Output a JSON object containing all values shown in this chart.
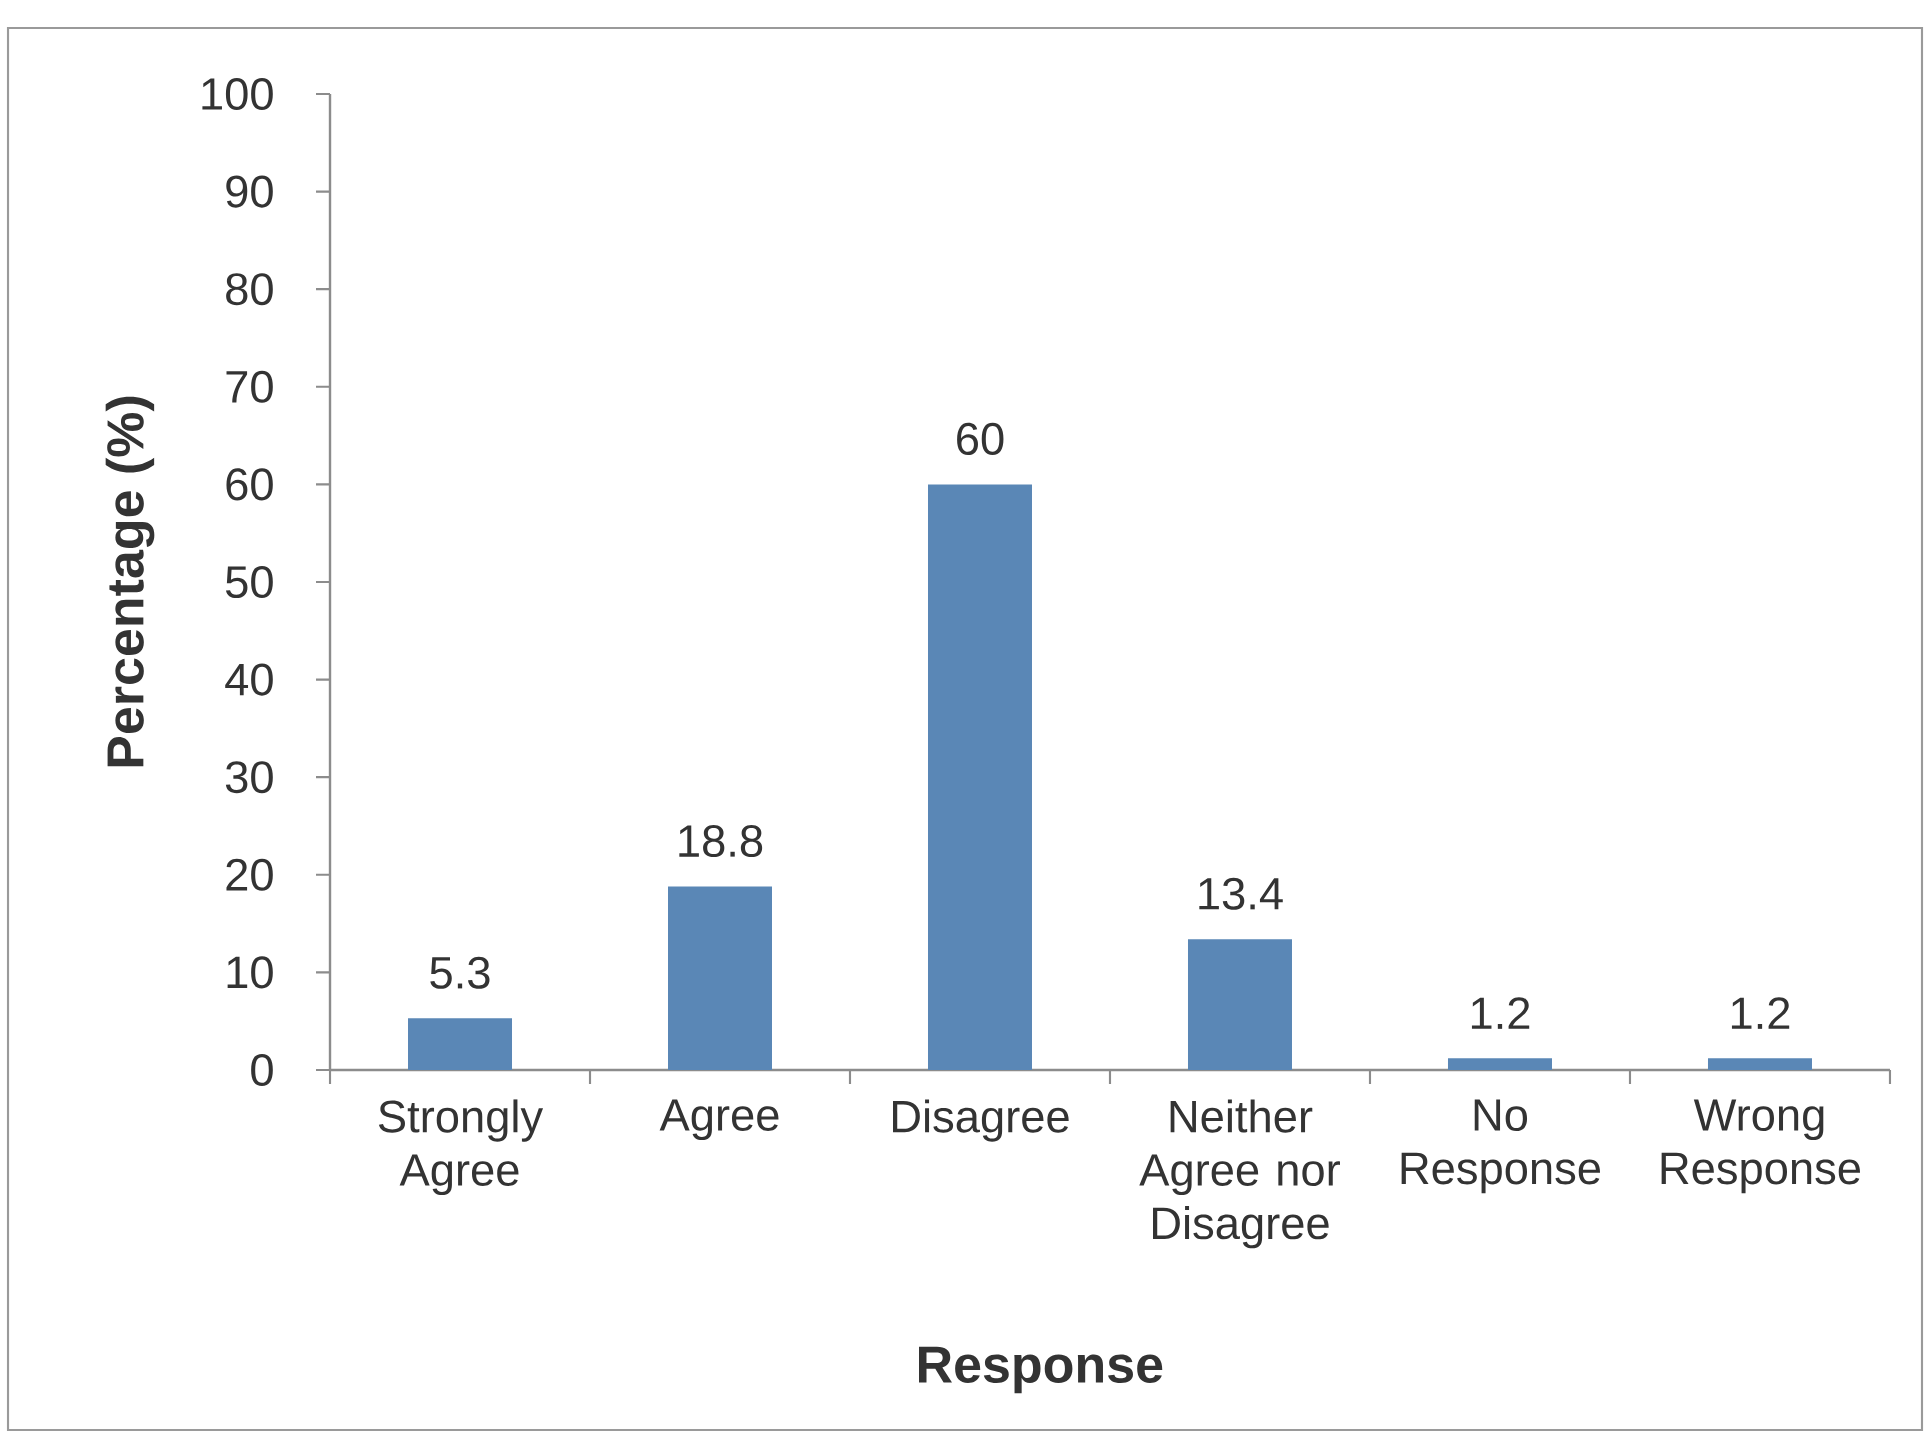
{
  "chart_data": {
    "type": "bar",
    "categories": [
      "Strongly Agree",
      "Agree",
      "Disagree",
      "Neither Agree nor Disagree",
      "No Response",
      "Wrong Response"
    ],
    "values": [
      5.3,
      18.8,
      60,
      13.4,
      1.2,
      1.2
    ],
    "color": "#5a87b6",
    "xlabel": "Response",
    "ylabel": "Percentage (%)",
    "ylim": [
      0,
      100
    ],
    "yticks": [
      0,
      10,
      20,
      30,
      40,
      50,
      60,
      70,
      80,
      90,
      100
    ],
    "data_labels": true
  }
}
